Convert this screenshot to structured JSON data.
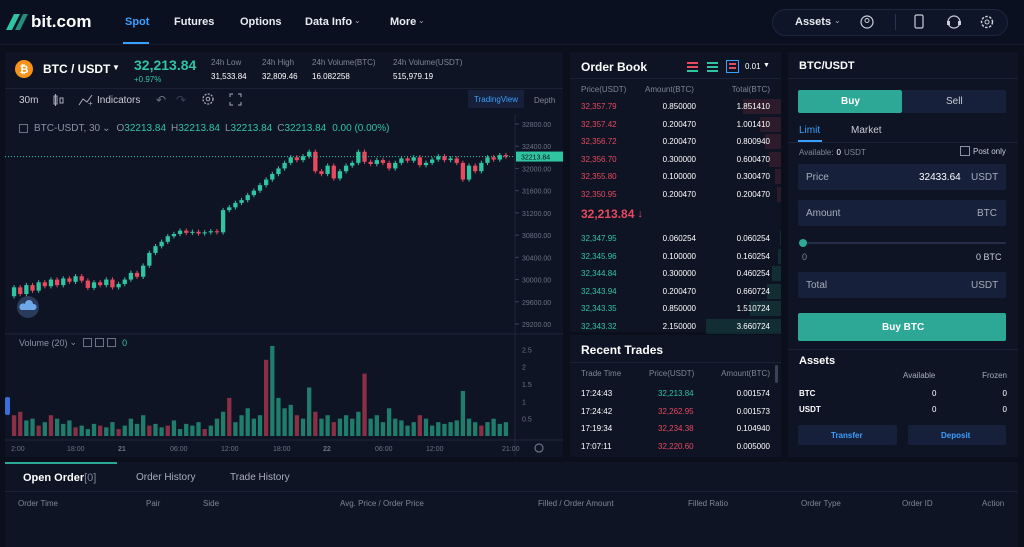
{
  "nav": {
    "logo": "bit.com",
    "links": [
      "Spot",
      "Futures",
      "Options",
      "Data Info",
      "More"
    ],
    "assets": "Assets"
  },
  "ticker": {
    "pair": "BTC / USDT",
    "price": "32,213.84",
    "change": "+0.97%",
    "stats": [
      {
        "label": "24h Low",
        "value": "31,533.84"
      },
      {
        "label": "24h High",
        "value": "32,809.46"
      },
      {
        "label": "24h Volume(BTC)",
        "value": "16.082258"
      },
      {
        "label": "24h Volume(USDT)",
        "value": "515,979.19"
      }
    ]
  },
  "toolbar": {
    "interval": "30m",
    "indicators": "Indicators",
    "tradingview": "TradingView",
    "depth": "Depth"
  },
  "chart": {
    "legend": "BTC-USDT, 30",
    "o": "O",
    "ov": "32213.84",
    "h": "H",
    "hv": "32213.84",
    "l": "L",
    "lv": "32213.84",
    "c": "C",
    "cv": "32213.84",
    "chg": "0.00 (0.00%)",
    "price_ticks": [
      "32800.00",
      "32400.00",
      "32000.00",
      "31600.00",
      "31200.00",
      "30800.00",
      "30400.00",
      "30000.00",
      "29600.00",
      "29200.00"
    ],
    "current_label": "32213.84",
    "volume_label": "Volume (20)",
    "volume_value": "0",
    "vol_ticks": [
      "2.5",
      "2",
      "1.5",
      "1",
      "0.5"
    ],
    "time_ticks": [
      "2:00",
      "18:00",
      "21",
      "06:00",
      "12:00",
      "18:00",
      "22",
      "06:00",
      "12:00",
      "21:00"
    ]
  },
  "orderbook": {
    "title": "Order Book",
    "precision": "0.01",
    "headers": [
      "Price(USDT)",
      "Amount(BTC)",
      "Total(BTC)"
    ],
    "asks": [
      [
        "32,357.79",
        "0.850000",
        "1.851410"
      ],
      [
        "32,357.42",
        "0.200470",
        "1.001410"
      ],
      [
        "32,356.72",
        "0.200470",
        "0.800940"
      ],
      [
        "32,356.70",
        "0.300000",
        "0.600470"
      ],
      [
        "32,355.80",
        "0.100000",
        "0.300470"
      ],
      [
        "32,350.95",
        "0.200470",
        "0.200470"
      ]
    ],
    "mid": "32,213.84",
    "bids": [
      [
        "32,347.95",
        "0.060254",
        "0.060254"
      ],
      [
        "32,345.96",
        "0.100000",
        "0.160254"
      ],
      [
        "32,344.84",
        "0.300000",
        "0.460254"
      ],
      [
        "32,343.94",
        "0.200470",
        "0.660724"
      ],
      [
        "32,343.35",
        "0.850000",
        "1.510724"
      ],
      [
        "32,343.32",
        "2.150000",
        "3.660724"
      ]
    ]
  },
  "trades": {
    "title": "Recent Trades",
    "headers": [
      "Trade Time",
      "Price(USDT)",
      "Amount(BTC)"
    ],
    "rows": [
      [
        "17:24:43",
        "32,213.84",
        "0.001574",
        "up"
      ],
      [
        "17:24:42",
        "32,262.95",
        "0.001573",
        "dn"
      ],
      [
        "17:19:34",
        "32,234.38",
        "0.104940",
        "dn"
      ],
      [
        "17:07:11",
        "32,220.60",
        "0.005000",
        "dn"
      ]
    ]
  },
  "form": {
    "title": "BTC/USDT",
    "buy": "Buy",
    "sell": "Sell",
    "limit": "Limit",
    "market": "Market",
    "available": "Available:",
    "available_value": "0",
    "available_unit": "USDT",
    "post_only": "Post only",
    "price_label": "Price",
    "price_value": "32433.64",
    "price_unit": "USDT",
    "amount_label": "Amount",
    "amount_unit": "BTC",
    "slider_min": "0",
    "slider_max": "0 BTC",
    "total_label": "Total",
    "total_unit": "USDT",
    "submit": "Buy BTC"
  },
  "assets": {
    "title": "Assets",
    "col_available": "Available",
    "col_frozen": "Frozen",
    "rows": [
      {
        "coin": "BTC",
        "available": "0",
        "frozen": "0"
      },
      {
        "coin": "USDT",
        "available": "0",
        "frozen": "0"
      }
    ],
    "transfer": "Transfer",
    "deposit": "Deposit"
  },
  "orders": {
    "tabs": [
      "Open Order",
      "Order History",
      "Trade History"
    ],
    "open_count": "[0]",
    "columns": [
      "Order Time",
      "Pair",
      "Side",
      "Avg. Price / Order Price",
      "Filled / Order Amount",
      "Filled Ratio",
      "Order Type",
      "Order ID",
      "Action"
    ]
  },
  "candles": [
    [
      29700,
      29860
    ],
    [
      29860,
      29740
    ],
    [
      29740,
      29900
    ],
    [
      29900,
      29800
    ],
    [
      29800,
      29950
    ],
    [
      29950,
      29880
    ],
    [
      29880,
      30000
    ],
    [
      30000,
      29900
    ],
    [
      29900,
      30020
    ],
    [
      30020,
      29960
    ],
    [
      29960,
      30060
    ],
    [
      30060,
      29980
    ],
    [
      29980,
      29850
    ],
    [
      29850,
      29950
    ],
    [
      29950,
      29900
    ],
    [
      29900,
      30000
    ],
    [
      30000,
      29860
    ],
    [
      29860,
      29920
    ],
    [
      29920,
      30000
    ],
    [
      30000,
      30120
    ],
    [
      30120,
      30050
    ],
    [
      30050,
      30250
    ],
    [
      30250,
      30480
    ],
    [
      30480,
      30600
    ],
    [
      30600,
      30680
    ],
    [
      30680,
      30780
    ],
    [
      30780,
      30820
    ],
    [
      30820,
      30880
    ],
    [
      30880,
      30840
    ],
    [
      30840,
      30860
    ],
    [
      30860,
      30830
    ],
    [
      30830,
      30850
    ],
    [
      30850,
      30870
    ],
    [
      30870,
      30850
    ],
    [
      30850,
      31250
    ],
    [
      31250,
      31300
    ],
    [
      31300,
      31380
    ],
    [
      31380,
      31430
    ],
    [
      31430,
      31520
    ],
    [
      31520,
      31600
    ],
    [
      31600,
      31700
    ],
    [
      31700,
      31800
    ],
    [
      31800,
      31900
    ],
    [
      31900,
      32000
    ],
    [
      32000,
      32100
    ],
    [
      32100,
      32200
    ],
    [
      32200,
      32150
    ],
    [
      32150,
      32220
    ],
    [
      32220,
      32300
    ],
    [
      32300,
      31950
    ],
    [
      31950,
      31900
    ],
    [
      31900,
      32050
    ],
    [
      32050,
      31820
    ],
    [
      31820,
      31950
    ],
    [
      31950,
      32050
    ],
    [
      32050,
      32100
    ],
    [
      32100,
      32300
    ],
    [
      32300,
      32120
    ],
    [
      32120,
      32080
    ],
    [
      32080,
      32150
    ],
    [
      32150,
      32100
    ],
    [
      32100,
      32000
    ],
    [
      32000,
      32100
    ],
    [
      32100,
      32180
    ],
    [
      32180,
      32140
    ],
    [
      32140,
      32200
    ],
    [
      32200,
      32060
    ],
    [
      32060,
      32100
    ],
    [
      32100,
      32160
    ],
    [
      32160,
      32220
    ],
    [
      32220,
      32150
    ],
    [
      32150,
      32180
    ],
    [
      32180,
      32100
    ],
    [
      32100,
      31800
    ],
    [
      31800,
      32050
    ],
    [
      32050,
      31950
    ],
    [
      31950,
      32100
    ],
    [
      32100,
      32200
    ],
    [
      32200,
      32160
    ],
    [
      32160,
      32240
    ],
    [
      32240,
      32214
    ]
  ],
  "volumes": [
    [
      0.6,
      "dn"
    ],
    [
      0.7,
      "dn"
    ],
    [
      0.45,
      "up"
    ],
    [
      0.5,
      "up"
    ],
    [
      0.3,
      "dn"
    ],
    [
      0.4,
      "up"
    ],
    [
      0.6,
      "dn"
    ],
    [
      0.5,
      "up"
    ],
    [
      0.35,
      "up"
    ],
    [
      0.45,
      "up"
    ],
    [
      0.25,
      "dn"
    ],
    [
      0.3,
      "up"
    ],
    [
      0.2,
      "up"
    ],
    [
      0.35,
      "up"
    ],
    [
      0.3,
      "dn"
    ],
    [
      0.25,
      "up"
    ],
    [
      0.4,
      "up"
    ],
    [
      0.2,
      "dn"
    ],
    [
      0.3,
      "up"
    ],
    [
      0.5,
      "up"
    ],
    [
      0.35,
      "up"
    ],
    [
      0.6,
      "up"
    ],
    [
      0.3,
      "dn"
    ],
    [
      0.35,
      "up"
    ],
    [
      0.25,
      "up"
    ],
    [
      0.3,
      "dn"
    ],
    [
      0.45,
      "up"
    ],
    [
      0.2,
      "up"
    ],
    [
      0.35,
      "up"
    ],
    [
      0.3,
      "up"
    ],
    [
      0.4,
      "up"
    ],
    [
      0.2,
      "dn"
    ],
    [
      0.3,
      "up"
    ],
    [
      0.5,
      "up"
    ],
    [
      0.7,
      "up"
    ],
    [
      1.1,
      "dn"
    ],
    [
      0.4,
      "up"
    ],
    [
      0.6,
      "up"
    ],
    [
      0.8,
      "up"
    ],
    [
      0.5,
      "up"
    ],
    [
      0.6,
      "up"
    ],
    [
      2.2,
      "dn"
    ],
    [
      2.6,
      "up"
    ],
    [
      1.1,
      "up"
    ],
    [
      0.8,
      "up"
    ],
    [
      0.9,
      "up"
    ],
    [
      0.6,
      "dn"
    ],
    [
      0.5,
      "up"
    ],
    [
      1.4,
      "up"
    ],
    [
      0.7,
      "dn"
    ],
    [
      0.5,
      "up"
    ],
    [
      0.6,
      "up"
    ],
    [
      0.4,
      "dn"
    ],
    [
      0.5,
      "up"
    ],
    [
      0.6,
      "up"
    ],
    [
      0.5,
      "up"
    ],
    [
      0.7,
      "up"
    ],
    [
      1.8,
      "dn"
    ],
    [
      0.5,
      "up"
    ],
    [
      0.6,
      "up"
    ],
    [
      0.4,
      "up"
    ],
    [
      0.8,
      "up"
    ],
    [
      0.5,
      "up"
    ],
    [
      0.45,
      "up"
    ],
    [
      0.3,
      "up"
    ],
    [
      0.4,
      "up"
    ],
    [
      0.6,
      "dn"
    ],
    [
      0.5,
      "up"
    ],
    [
      0.3,
      "up"
    ],
    [
      0.4,
      "up"
    ],
    [
      0.35,
      "up"
    ],
    [
      0.4,
      "up"
    ],
    [
      0.45,
      "up"
    ],
    [
      1.3,
      "up"
    ],
    [
      0.5,
      "up"
    ],
    [
      0.4,
      "up"
    ],
    [
      0.3,
      "dn"
    ],
    [
      0.4,
      "up"
    ],
    [
      0.5,
      "up"
    ],
    [
      0.35,
      "up"
    ],
    [
      0.4,
      "up"
    ]
  ]
}
